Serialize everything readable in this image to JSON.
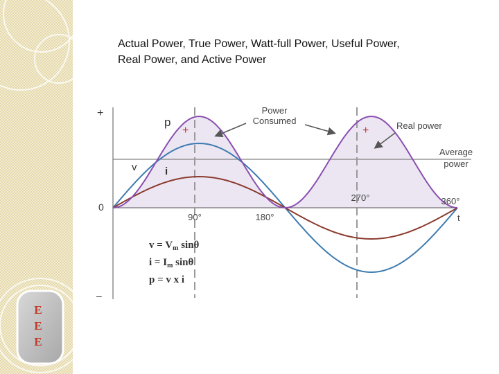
{
  "title_lines": [
    "Actual Power, True Power, Watt-full Power, Useful Power,",
    "Real Power, and Active Power"
  ],
  "badge": [
    "E",
    "E",
    "E"
  ],
  "axis": {
    "plus": "+",
    "zero": "0",
    "minus": "–",
    "t": "t"
  },
  "curve_labels": {
    "p": "p",
    "v": "v",
    "i": "i",
    "plus": "+"
  },
  "angles": [
    "90°",
    "180°",
    "270°",
    "360°"
  ],
  "callouts": {
    "power_consumed": [
      "Power",
      "Consumed"
    ],
    "real_power": "Real power",
    "average_power": [
      "Average",
      "power"
    ]
  },
  "formulas": [
    {
      "lhs": "v = V",
      "sub": "m",
      "rhs": " sinθ"
    },
    {
      "lhs": "i = I",
      "sub": "m",
      "rhs": " sinθ"
    },
    {
      "lhs": "p = v x i",
      "sub": "",
      "rhs": ""
    }
  ]
}
